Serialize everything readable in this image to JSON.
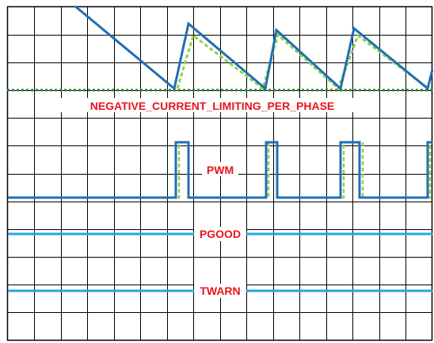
{
  "labels": {
    "current_limit": "NEGATIVE_CURRENT_LIMITING_PER_PHASE",
    "pwm": "PWM",
    "pgood": "PGOOD",
    "twarn": "TWARN"
  },
  "colors": {
    "grid": "#000000",
    "primary_trace": "#1f6fb4",
    "secondary_trace": "#8fd14f",
    "limit_line": "#2e7d32",
    "flat_trace": "#29a3e0",
    "label_text": "#e8141c",
    "background": "#ffffff"
  }
}
